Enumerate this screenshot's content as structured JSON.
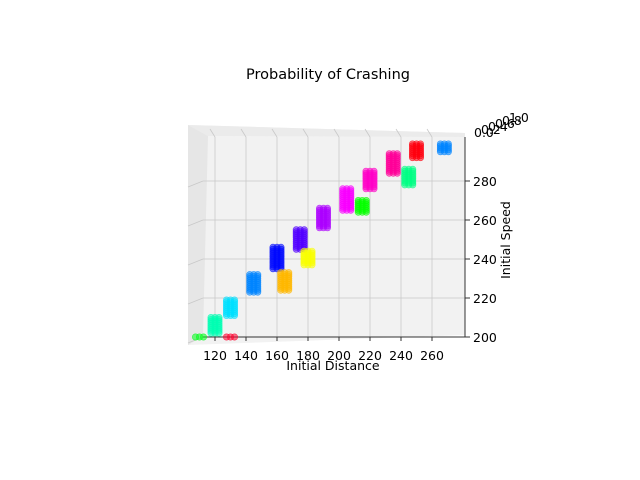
{
  "chart_data": {
    "type": "scatter",
    "title": "Probability of Crashing",
    "xlabel": "Initial Distance",
    "ylabel": "Initial Speed",
    "zlabel": "",
    "x_ticks": [
      "120",
      "140",
      "160",
      "180",
      "200",
      "220",
      "240",
      "260"
    ],
    "y_ticks": [
      "200",
      "220",
      "240",
      "260",
      "280"
    ],
    "z_ticks": [
      "0.0",
      "0.2",
      "0.4",
      "0.6",
      "0.8",
      "1.0"
    ],
    "xlim": [
      108,
      272
    ],
    "ylim": [
      199,
      299
    ],
    "zlim": [
      0,
      1
    ],
    "grid": true,
    "colormap": "hsv",
    "columns": [
      {
        "x": 110,
        "y_min": 200,
        "y_max": 200,
        "prob": 0.35
      },
      {
        "x": 120,
        "y_min": 202,
        "y_max": 210,
        "prob": 0.45
      },
      {
        "x": 130,
        "y_min": 200,
        "y_max": 200,
        "prob": 0.97
      },
      {
        "x": 130,
        "y_min": 211,
        "y_max": 219,
        "prob": 0.52
      },
      {
        "x": 145,
        "y_min": 223,
        "y_max": 232,
        "prob": 0.58
      },
      {
        "x": 160,
        "y_min": 235,
        "y_max": 246,
        "prob": 0.66
      },
      {
        "x": 165,
        "y_min": 224,
        "y_max": 233,
        "prob": 0.12
      },
      {
        "x": 175,
        "y_min": 245,
        "y_max": 255,
        "prob": 0.72
      },
      {
        "x": 180,
        "y_min": 237,
        "y_max": 244,
        "prob": 0.17
      },
      {
        "x": 190,
        "y_min": 256,
        "y_max": 266,
        "prob": 0.78
      },
      {
        "x": 205,
        "y_min": 265,
        "y_max": 276,
        "prob": 0.83
      },
      {
        "x": 215,
        "y_min": 264,
        "y_max": 270,
        "prob": 0.33
      },
      {
        "x": 220,
        "y_min": 276,
        "y_max": 285,
        "prob": 0.87
      },
      {
        "x": 235,
        "y_min": 284,
        "y_max": 294,
        "prob": 0.9
      },
      {
        "x": 245,
        "y_min": 278,
        "y_max": 286,
        "prob": 0.42
      },
      {
        "x": 250,
        "y_min": 292,
        "y_max": 299,
        "prob": 0.99
      },
      {
        "x": 268,
        "y_min": 295,
        "y_max": 299,
        "prob": 0.58
      }
    ]
  }
}
